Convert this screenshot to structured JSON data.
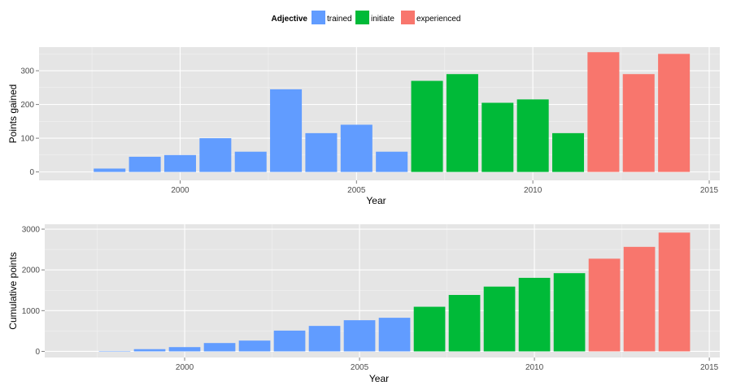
{
  "legend": {
    "title": "Adjective",
    "entries": [
      {
        "label": "trained",
        "color": "#619CFF"
      },
      {
        "label": "initiate",
        "color": "#00BA38"
      },
      {
        "label": "experienced",
        "color": "#F8766D"
      }
    ],
    "placement": "top"
  },
  "chart_data": [
    {
      "type": "bar",
      "xlabel": "Year",
      "ylabel": "Points gained",
      "xlim": [
        1996,
        2015.3
      ],
      "ylim": [
        -25,
        370
      ],
      "x_ticks": [
        2000,
        2005,
        2010,
        2015
      ],
      "y_ticks": [
        0,
        100,
        200,
        300
      ],
      "grid": true,
      "x": [
        1998,
        1999,
        2000,
        2001,
        2002,
        2003,
        2004,
        2005,
        2006,
        2007,
        2008,
        2009,
        2010,
        2011,
        2012,
        2013,
        2014
      ],
      "values": [
        10,
        45,
        50,
        100,
        60,
        245,
        115,
        140,
        60,
        270,
        290,
        205,
        215,
        115,
        355,
        290,
        350
      ],
      "groups": [
        "trained",
        "trained",
        "trained",
        "trained",
        "trained",
        "trained",
        "trained",
        "trained",
        "trained",
        "initiate",
        "initiate",
        "initiate",
        "initiate",
        "initiate",
        "experienced",
        "experienced",
        "experienced"
      ]
    },
    {
      "type": "bar",
      "xlabel": "Year",
      "ylabel": "Cumulative points",
      "xlim": [
        1996,
        2015.3
      ],
      "ylim": [
        -150,
        3120
      ],
      "x_ticks": [
        2000,
        2005,
        2010,
        2015
      ],
      "y_ticks": [
        0,
        1000,
        2000,
        3000
      ],
      "grid": true,
      "x": [
        1998,
        1999,
        2000,
        2001,
        2002,
        2003,
        2004,
        2005,
        2006,
        2007,
        2008,
        2009,
        2010,
        2011,
        2012,
        2013,
        2014
      ],
      "values": [
        10,
        55,
        105,
        205,
        265,
        510,
        625,
        765,
        825,
        1095,
        1385,
        1590,
        1805,
        1920,
        2275,
        2565,
        2915
      ],
      "groups": [
        "trained",
        "trained",
        "trained",
        "trained",
        "trained",
        "trained",
        "trained",
        "trained",
        "trained",
        "initiate",
        "initiate",
        "initiate",
        "initiate",
        "initiate",
        "experienced",
        "experienced",
        "experienced"
      ]
    }
  ]
}
